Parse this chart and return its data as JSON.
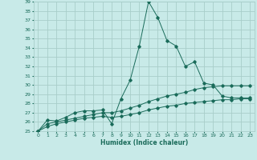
{
  "xlabel": "Humidex (Indice chaleur)",
  "bg_color": "#c8eae8",
  "grid_color": "#a8ceca",
  "line_color": "#1a6b5a",
  "xlim": [
    -0.5,
    23.5
  ],
  "ylim": [
    25,
    39
  ],
  "xticks": [
    0,
    1,
    2,
    3,
    4,
    5,
    6,
    7,
    8,
    9,
    10,
    11,
    12,
    13,
    14,
    15,
    16,
    17,
    18,
    19,
    20,
    21,
    22,
    23
  ],
  "yticks": [
    25,
    26,
    27,
    28,
    29,
    30,
    31,
    32,
    33,
    34,
    35,
    36,
    37,
    38,
    39
  ],
  "series1_x": [
    0,
    1,
    2,
    3,
    4,
    5,
    6,
    7,
    8,
    9,
    10,
    11,
    12,
    13,
    14,
    15,
    16,
    17,
    18,
    19,
    20,
    21,
    22,
    23
  ],
  "series1_y": [
    25.0,
    26.2,
    26.1,
    26.5,
    27.0,
    27.2,
    27.2,
    27.3,
    25.8,
    28.5,
    30.5,
    34.2,
    39.0,
    37.3,
    34.8,
    34.2,
    32.0,
    32.5,
    30.2,
    30.0,
    28.8,
    28.6,
    28.6,
    28.6
  ],
  "series2_x": [
    0,
    1,
    2,
    3,
    4,
    5,
    6,
    7,
    8,
    9,
    10,
    11,
    12,
    13,
    14,
    15,
    16,
    17,
    18,
    19,
    20,
    21,
    22,
    23
  ],
  "series2_y": [
    25.0,
    25.8,
    26.0,
    26.2,
    26.4,
    26.6,
    26.8,
    27.0,
    27.0,
    27.2,
    27.5,
    27.8,
    28.2,
    28.5,
    28.8,
    29.0,
    29.2,
    29.5,
    29.7,
    29.8,
    29.9,
    29.9,
    29.9,
    29.9
  ],
  "series3_x": [
    0,
    1,
    2,
    3,
    4,
    5,
    6,
    7,
    8,
    9,
    10,
    11,
    12,
    13,
    14,
    15,
    16,
    17,
    18,
    19,
    20,
    21,
    22,
    23
  ],
  "series3_y": [
    25.0,
    25.5,
    25.8,
    26.0,
    26.2,
    26.4,
    26.5,
    26.6,
    26.5,
    26.6,
    26.8,
    27.0,
    27.3,
    27.5,
    27.7,
    27.8,
    28.0,
    28.1,
    28.2,
    28.3,
    28.4,
    28.4,
    28.5,
    28.5
  ],
  "xlabel_fontsize": 5.5,
  "tick_fontsize": 4.5,
  "lw": 0.7,
  "ms": 1.8
}
